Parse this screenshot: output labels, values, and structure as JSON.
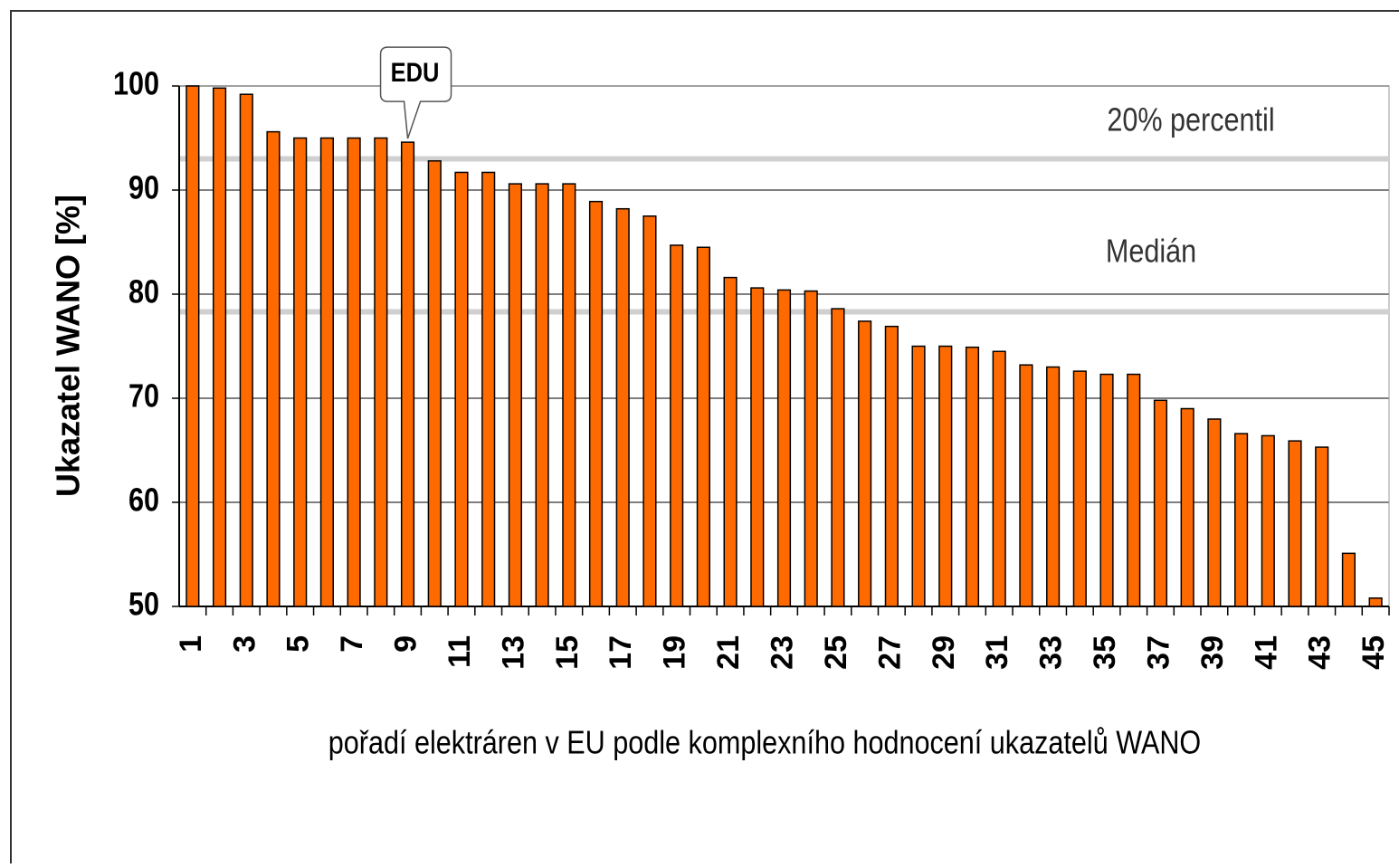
{
  "chart_data": {
    "type": "bar",
    "y_axis_label": "Ukazatel WANO [%]",
    "x_axis_label": "pořadí elektráren v EU podle komplexního hodnocení ukazatelů WANO",
    "categories": [
      "1",
      null,
      "3",
      null,
      "5",
      null,
      "7",
      null,
      "9",
      null,
      "11",
      null,
      "13",
      null,
      "15",
      null,
      "17",
      null,
      "19",
      null,
      "21",
      null,
      "23",
      null,
      "25",
      null,
      "27",
      null,
      "29",
      null,
      "31",
      null,
      "33",
      null,
      "35",
      null,
      "37",
      null,
      "39",
      null,
      "41",
      null,
      "43",
      null,
      "45"
    ],
    "values": [
      100,
      99.8,
      99.2,
      95.6,
      95.0,
      95.0,
      95.0,
      95.0,
      94.6,
      92.8,
      91.7,
      91.7,
      90.6,
      90.6,
      90.6,
      88.9,
      88.2,
      87.5,
      84.7,
      84.5,
      81.6,
      80.6,
      80.4,
      80.3,
      78.6,
      77.4,
      76.9,
      75.0,
      75.0,
      74.9,
      74.5,
      73.2,
      73.0,
      72.6,
      72.3,
      72.3,
      69.8,
      69.0,
      68.0,
      66.6,
      66.4,
      65.9,
      65.3,
      55.1,
      50.8
    ],
    "color": "#ff6a00",
    "ylim": [
      50,
      100
    ],
    "yticks": [
      50,
      60,
      70,
      80,
      90,
      100
    ],
    "grid": true,
    "reference_lines": [
      {
        "label": "20% percentil",
        "value": 93.0,
        "color": "#d0d0d0"
      },
      {
        "label": "Medián",
        "value": 78.3,
        "color": "#d0d0d0"
      }
    ],
    "annotations": [
      {
        "text": "EDU",
        "category": "9"
      }
    ]
  }
}
